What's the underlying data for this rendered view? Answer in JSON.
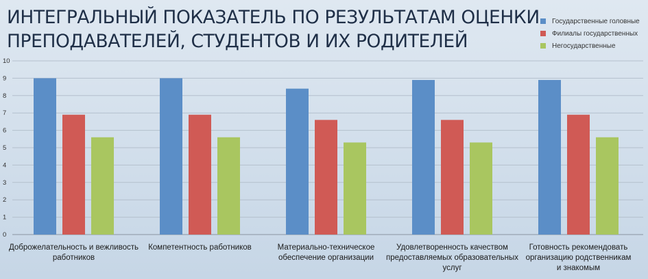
{
  "header": {
    "title_line1": "ИНТЕГРАЛЬНЫЙ ПОКАЗАТЕЛЬ ПО РЕЗУЛЬТАТАМ ОЦЕНКИ",
    "title_line2": "ПРЕПОДАВАТЕЛЕЙ, СТУДЕНТОВ И ИХ РОДИТЕЛЕЙ"
  },
  "chart_data": {
    "type": "bar",
    "title": "ИНТЕГРАЛЬНЫЙ ПОКАЗАТЕЛЬ ПО РЕЗУЛЬТАТАМ ОЦЕНКИ ПРЕПОДАВАТЕЛЕЙ, СТУДЕНТОВ И ИХ РОДИТЕЛЕЙ",
    "categories": [
      [
        "Доброжелательность и вежливость",
        "работников"
      ],
      [
        "Компетентность работников"
      ],
      [
        "Материально-техническое",
        "обеспечение организации"
      ],
      [
        "Удовлетворенность качеством",
        "предоставляемых образовательных",
        "услуг"
      ],
      [
        "Готовность рекомендовать",
        "организацию родственникам",
        "и знакомым"
      ]
    ],
    "series": [
      {
        "name": "Государственные головные",
        "color": "#5b8ec7",
        "values": [
          9.0,
          9.0,
          8.4,
          8.9,
          8.9
        ]
      },
      {
        "name": "Филиалы государственных",
        "color": "#d05a55",
        "values": [
          6.9,
          6.9,
          6.6,
          6.6,
          6.9
        ]
      },
      {
        "name": "Негосударственные",
        "color": "#a9c660",
        "values": [
          5.6,
          5.6,
          5.3,
          5.3,
          5.6
        ]
      }
    ],
    "ylim": [
      0,
      10
    ],
    "yticks": [
      0,
      1,
      2,
      3,
      4,
      5,
      6,
      7,
      8,
      9,
      10
    ],
    "xlabel": "",
    "ylabel": "",
    "grid": true,
    "legend_position": "top-right"
  }
}
